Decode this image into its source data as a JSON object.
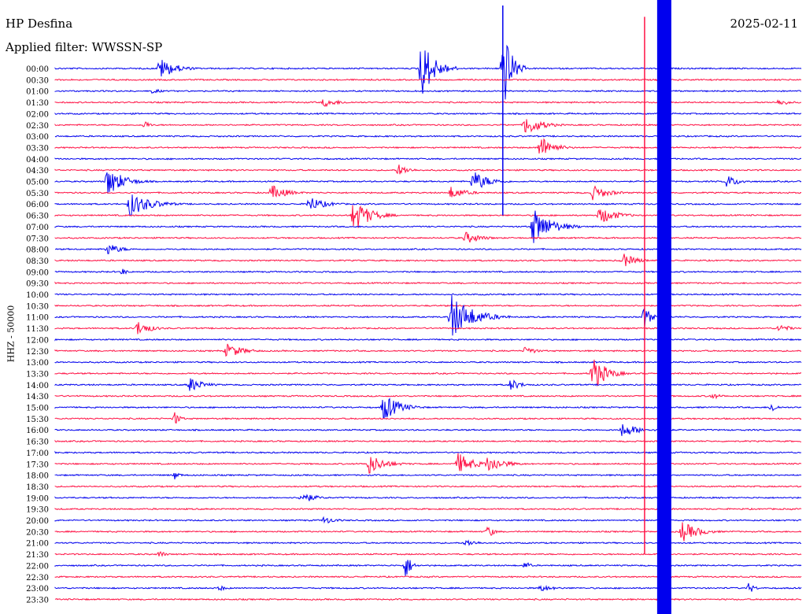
{
  "header": {
    "station": "HP Desfina",
    "filter": "Applied filter: WWSSN-SP",
    "date": "2025-02-11"
  },
  "chart_data": {
    "type": "line",
    "title": "HP Desfina",
    "subtitle": "Applied filter: WWSSN-SP",
    "date": "2025-02-11",
    "ylabel": "HHZ - 50000",
    "xlabel": "",
    "trace_colors": [
      "#0000ee",
      "#ff1144"
    ],
    "row_labels": [
      "00:00",
      "00:30",
      "01:00",
      "01:30",
      "02:00",
      "02:30",
      "03:00",
      "03:30",
      "04:00",
      "04:30",
      "05:00",
      "05:30",
      "06:00",
      "06:30",
      "07:00",
      "07:30",
      "08:00",
      "08:30",
      "09:00",
      "09:30",
      "10:00",
      "10:30",
      "11:00",
      "11:30",
      "12:00",
      "12:30",
      "13:00",
      "13:30",
      "14:00",
      "14:30",
      "15:00",
      "15:30",
      "16:00",
      "16:30",
      "17:00",
      "17:30",
      "18:00",
      "18:30",
      "19:00",
      "19:30",
      "20:00",
      "20:30",
      "21:00",
      "21:30",
      "22:00",
      "22:30",
      "23:00",
      "23:30"
    ],
    "row_minutes": 30,
    "events": [
      {
        "row": 0,
        "at": 0.14,
        "amp": 14,
        "dur": 0.06
      },
      {
        "row": 0,
        "at": 0.49,
        "amp": 40,
        "dur": 0.05
      },
      {
        "row": 0,
        "at": 0.6,
        "amp": 60,
        "dur": 0.03
      },
      {
        "row": 2,
        "at": 0.13,
        "amp": 3,
        "dur": 0.05
      },
      {
        "row": 3,
        "at": 0.36,
        "amp": 6,
        "dur": 0.06
      },
      {
        "row": 3,
        "at": 0.97,
        "amp": 5,
        "dur": 0.04
      },
      {
        "row": 5,
        "at": 0.12,
        "amp": 6,
        "dur": 0.02
      },
      {
        "row": 5,
        "at": 0.63,
        "amp": 14,
        "dur": 0.06
      },
      {
        "row": 7,
        "at": 0.65,
        "amp": 16,
        "dur": 0.05
      },
      {
        "row": 9,
        "at": 0.46,
        "amp": 8,
        "dur": 0.04
      },
      {
        "row": 10,
        "at": 0.56,
        "amp": 14,
        "dur": 0.06
      },
      {
        "row": 10,
        "at": 0.07,
        "amp": 20,
        "dur": 0.06
      },
      {
        "row": 10,
        "at": 0.9,
        "amp": 8,
        "dur": 0.05
      },
      {
        "row": 11,
        "at": 0.29,
        "amp": 10,
        "dur": 0.06
      },
      {
        "row": 11,
        "at": 0.53,
        "amp": 8,
        "dur": 0.06
      },
      {
        "row": 11,
        "at": 0.72,
        "amp": 10,
        "dur": 0.06
      },
      {
        "row": 12,
        "at": 0.1,
        "amp": 16,
        "dur": 0.08
      },
      {
        "row": 12,
        "at": 0.34,
        "amp": 10,
        "dur": 0.06
      },
      {
        "row": 13,
        "at": 0.4,
        "amp": 22,
        "dur": 0.06
      },
      {
        "row": 13,
        "at": 0.73,
        "amp": 12,
        "dur": 0.06
      },
      {
        "row": 14,
        "at": 0.64,
        "amp": 24,
        "dur": 0.07
      },
      {
        "row": 15,
        "at": 0.55,
        "amp": 8,
        "dur": 0.06
      },
      {
        "row": 16,
        "at": 0.07,
        "amp": 8,
        "dur": 0.05
      },
      {
        "row": 17,
        "at": 0.76,
        "amp": 10,
        "dur": 0.05
      },
      {
        "row": 18,
        "at": 0.09,
        "amp": 5,
        "dur": 0.02
      },
      {
        "row": 22,
        "at": 0.53,
        "amp": 30,
        "dur": 0.08
      },
      {
        "row": 22,
        "at": 0.79,
        "amp": 18,
        "dur": 0.02
      },
      {
        "row": 23,
        "at": 0.11,
        "amp": 10,
        "dur": 0.05
      },
      {
        "row": 23,
        "at": 0.97,
        "amp": 6,
        "dur": 0.04
      },
      {
        "row": 25,
        "at": 0.23,
        "amp": 10,
        "dur": 0.06
      },
      {
        "row": 25,
        "at": 0.63,
        "amp": 6,
        "dur": 0.04
      },
      {
        "row": 27,
        "at": 0.72,
        "amp": 24,
        "dur": 0.05
      },
      {
        "row": 28,
        "at": 0.18,
        "amp": 10,
        "dur": 0.05
      },
      {
        "row": 28,
        "at": 0.61,
        "amp": 8,
        "dur": 0.04
      },
      {
        "row": 29,
        "at": 0.88,
        "amp": 4,
        "dur": 0.04
      },
      {
        "row": 30,
        "at": 0.44,
        "amp": 18,
        "dur": 0.06
      },
      {
        "row": 30,
        "at": 0.96,
        "amp": 8,
        "dur": 0.02
      },
      {
        "row": 31,
        "at": 0.16,
        "amp": 10,
        "dur": 0.02
      },
      {
        "row": 32,
        "at": 0.76,
        "amp": 10,
        "dur": 0.06
      },
      {
        "row": 35,
        "at": 0.42,
        "amp": 14,
        "dur": 0.06
      },
      {
        "row": 35,
        "at": 0.54,
        "amp": 14,
        "dur": 0.06
      },
      {
        "row": 35,
        "at": 0.58,
        "amp": 12,
        "dur": 0.06
      },
      {
        "row": 36,
        "at": 0.16,
        "amp": 6,
        "dur": 0.02
      },
      {
        "row": 38,
        "at": 0.33,
        "amp": 8,
        "dur": 0.05
      },
      {
        "row": 40,
        "at": 0.36,
        "amp": 5,
        "dur": 0.05
      },
      {
        "row": 41,
        "at": 0.84,
        "amp": 14,
        "dur": 0.06
      },
      {
        "row": 41,
        "at": 0.58,
        "amp": 10,
        "dur": 0.02
      },
      {
        "row": 42,
        "at": 0.55,
        "amp": 5,
        "dur": 0.05
      },
      {
        "row": 43,
        "at": 0.14,
        "amp": 6,
        "dur": 0.02
      },
      {
        "row": 44,
        "at": 0.47,
        "amp": 18,
        "dur": 0.02
      },
      {
        "row": 44,
        "at": 0.63,
        "amp": 6,
        "dur": 0.02
      },
      {
        "row": 46,
        "at": 0.22,
        "amp": 4,
        "dur": 0.03
      },
      {
        "row": 46,
        "at": 0.65,
        "amp": 5,
        "dur": 0.05
      },
      {
        "row": 46,
        "at": 0.93,
        "amp": 8,
        "dur": 0.02
      }
    ],
    "saturated_events": [
      {
        "row_start": 0,
        "row_end": 47,
        "at": 0.81
      }
    ],
    "glitch_lines": [
      {
        "row_start": 0,
        "row_end": 13,
        "at": 0.6
      },
      {
        "row_start": 1,
        "row_end": 43,
        "at": 0.79
      }
    ]
  }
}
